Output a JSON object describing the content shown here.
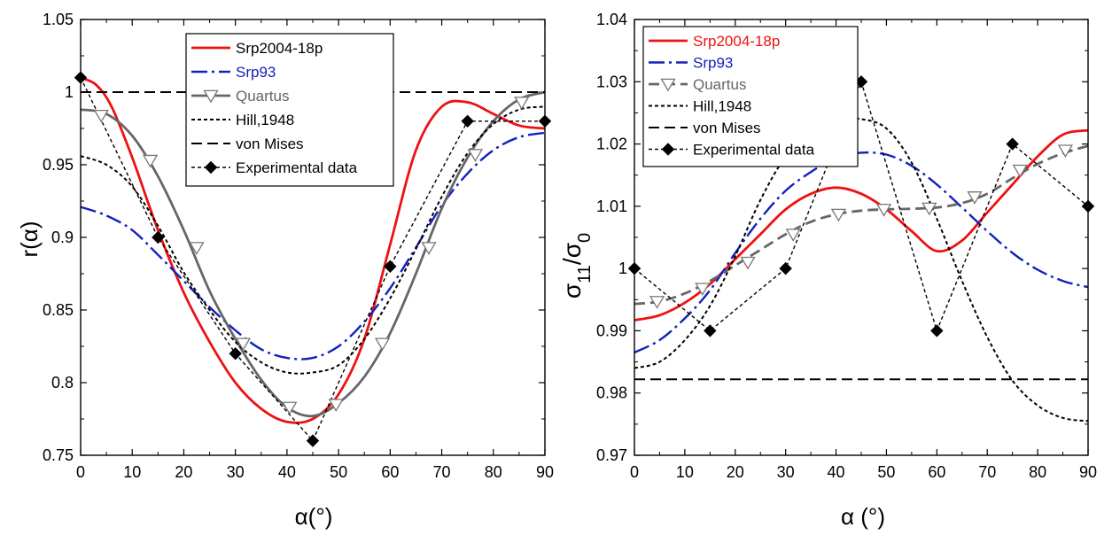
{
  "chart_data": [
    {
      "type": "line",
      "xlabel": "α(°)",
      "ylabel": "r(α)",
      "xlim": [
        0,
        90
      ],
      "ylim": [
        0.75,
        1.05
      ],
      "xticks": [
        "0",
        "10",
        "20",
        "30",
        "40",
        "50",
        "60",
        "70",
        "80",
        "90"
      ],
      "yticks": [
        "0.75",
        "0.8",
        "0.85",
        "0.9",
        "0.95",
        "1",
        "1.05"
      ],
      "grid": false,
      "legend_position": "top-center",
      "series": [
        {
          "name": "Srp2004-18p",
          "color": "#ee1111",
          "style": "solid",
          "x": [
            0,
            3,
            6,
            10,
            15,
            20,
            25,
            30,
            35,
            40,
            45,
            50,
            55,
            60,
            65,
            70,
            75,
            80,
            85,
            90
          ],
          "y": [
            1.01,
            1.005,
            0.99,
            0.955,
            0.905,
            0.862,
            0.828,
            0.8,
            0.782,
            0.773,
            0.775,
            0.792,
            0.83,
            0.895,
            0.96,
            0.99,
            0.993,
            0.985,
            0.977,
            0.975
          ]
        },
        {
          "name": "Srp93",
          "color": "#1122bb",
          "style": "dashdot",
          "x": [
            0,
            5,
            10,
            15,
            20,
            25,
            30,
            35,
            40,
            45,
            50,
            55,
            60,
            65,
            70,
            75,
            80,
            85,
            90
          ],
          "y": [
            0.921,
            0.915,
            0.905,
            0.888,
            0.87,
            0.852,
            0.836,
            0.823,
            0.817,
            0.817,
            0.825,
            0.842,
            0.865,
            0.893,
            0.922,
            0.944,
            0.96,
            0.969,
            0.972
          ]
        },
        {
          "name": "Quartus",
          "color": "#666666",
          "style": "solid-markers",
          "marker": "triangle-down-open",
          "x": [
            0,
            5,
            10,
            15,
            20,
            25,
            30,
            35,
            40,
            45,
            50,
            55,
            60,
            65,
            70,
            75,
            80,
            85,
            90
          ],
          "y": [
            0.988,
            0.985,
            0.97,
            0.942,
            0.905,
            0.863,
            0.83,
            0.802,
            0.783,
            0.777,
            0.786,
            0.804,
            0.834,
            0.875,
            0.92,
            0.955,
            0.98,
            0.995,
            1.0
          ],
          "marker_x": [
            4,
            13.5,
            22.5,
            31.5,
            40.5,
            49.5,
            58.5,
            67.5,
            76.5,
            85.5
          ],
          "marker_y": [
            0.984,
            0.953,
            0.893,
            0.827,
            0.783,
            0.785,
            0.827,
            0.893,
            0.957,
            0.993
          ]
        },
        {
          "name": "Hill,1948",
          "color": "#000000",
          "style": "dotted",
          "x": [
            0,
            5,
            10,
            15,
            20,
            25,
            30,
            35,
            40,
            45,
            50,
            55,
            60,
            65,
            70,
            75,
            80,
            85,
            90
          ],
          "y": [
            0.956,
            0.95,
            0.935,
            0.908,
            0.876,
            0.85,
            0.828,
            0.814,
            0.807,
            0.807,
            0.812,
            0.83,
            0.858,
            0.892,
            0.928,
            0.958,
            0.978,
            0.988,
            0.99
          ]
        },
        {
          "name": "von Mises",
          "color": "#000000",
          "style": "dashed",
          "x": [
            0,
            90
          ],
          "y": [
            1.0,
            1.0
          ]
        },
        {
          "name": "Experimental data",
          "color": "#000000",
          "style": "dotted-markers",
          "marker": "diamond-filled",
          "x": [
            0,
            15,
            30,
            45,
            60,
            75,
            90
          ],
          "y": [
            1.01,
            0.9,
            0.82,
            0.76,
            0.88,
            0.98,
            0.98
          ]
        }
      ]
    },
    {
      "type": "line",
      "xlabel": "α (°)",
      "ylabel_main": "σ",
      "ylabel_sub1": "11",
      "ylabel_mid": "/σ",
      "ylabel_sub2": "0",
      "xlim": [
        0,
        90
      ],
      "ylim": [
        0.97,
        1.04
      ],
      "xticks": [
        "0",
        "10",
        "20",
        "30",
        "40",
        "50",
        "60",
        "70",
        "80",
        "90"
      ],
      "yticks": [
        "0.97",
        "0.98",
        "0.99",
        "1",
        "1.01",
        "1.02",
        "1.03",
        "1.04"
      ],
      "grid": false,
      "legend_position": "top-left",
      "series": [
        {
          "name": "Srp2004-18p",
          "color": "#ee1111",
          "style": "solid",
          "x": [
            0,
            5,
            10,
            15,
            20,
            25,
            30,
            35,
            40,
            45,
            50,
            55,
            60,
            65,
            70,
            75,
            80,
            85,
            90
          ],
          "y": [
            0.9917,
            0.9925,
            0.9945,
            0.9975,
            1.0015,
            1.0055,
            1.0095,
            1.012,
            1.013,
            1.012,
            1.0095,
            1.006,
            1.0028,
            1.0045,
            1.009,
            1.0135,
            1.018,
            1.0215,
            1.0222
          ]
        },
        {
          "name": "Srp93",
          "color": "#1122bb",
          "style": "dashdot",
          "x": [
            0,
            5,
            10,
            15,
            20,
            25,
            30,
            35,
            40,
            45,
            50,
            55,
            60,
            65,
            70,
            75,
            80,
            85,
            90
          ],
          "y": [
            0.9865,
            0.9885,
            0.992,
            0.9965,
            1.0025,
            1.008,
            1.0125,
            1.0155,
            1.0178,
            1.0186,
            1.0183,
            1.0165,
            1.0135,
            1.0098,
            1.006,
            1.0025,
            0.9998,
            0.998,
            0.997
          ]
        },
        {
          "name": "Quartus",
          "color": "#666666",
          "style": "dashed-markers",
          "marker": "triangle-down-open",
          "x": [
            0,
            5,
            10,
            15,
            20,
            25,
            30,
            35,
            40,
            45,
            50,
            55,
            60,
            65,
            70,
            75,
            80,
            85,
            90
          ],
          "y": [
            0.9943,
            0.9947,
            0.996,
            0.998,
            1.0005,
            1.003,
            1.0055,
            1.0075,
            1.0087,
            1.0093,
            1.0095,
            1.0096,
            1.0098,
            1.0105,
            1.012,
            1.0145,
            1.0168,
            1.0185,
            1.0197
          ],
          "marker_x": [
            4.5,
            13.5,
            22.5,
            31.5,
            40.5,
            49.5,
            58.5,
            67.5,
            76.5,
            85.5
          ],
          "marker_y": [
            0.9947,
            0.9968,
            1.001,
            1.0055,
            1.0087,
            1.0095,
            1.0097,
            1.0115,
            1.0158,
            1.019
          ]
        },
        {
          "name": "Hill,1948",
          "color": "#000000",
          "style": "dotted",
          "x": [
            0,
            5,
            10,
            15,
            20,
            25,
            30,
            35,
            40,
            45,
            50,
            55,
            60,
            65,
            70,
            75,
            80,
            85,
            90
          ],
          "y": [
            0.984,
            0.985,
            0.9885,
            0.994,
            1.002,
            1.011,
            1.018,
            1.022,
            1.024,
            1.024,
            1.0225,
            1.017,
            1.008,
            0.998,
            0.989,
            0.982,
            0.978,
            0.976,
            0.9755
          ]
        },
        {
          "name": "von Mises",
          "color": "#000000",
          "style": "dashed",
          "x": [
            0,
            90
          ],
          "y": [
            0.9822,
            0.9822
          ]
        },
        {
          "name": "Experimental data",
          "color": "#000000",
          "style": "dotted-markers",
          "marker": "diamond-filled",
          "x": [
            0,
            15,
            30,
            45,
            60,
            75,
            90
          ],
          "y": [
            1.0,
            0.99,
            1.0,
            1.03,
            0.99,
            1.02,
            1.01
          ]
        }
      ]
    }
  ]
}
